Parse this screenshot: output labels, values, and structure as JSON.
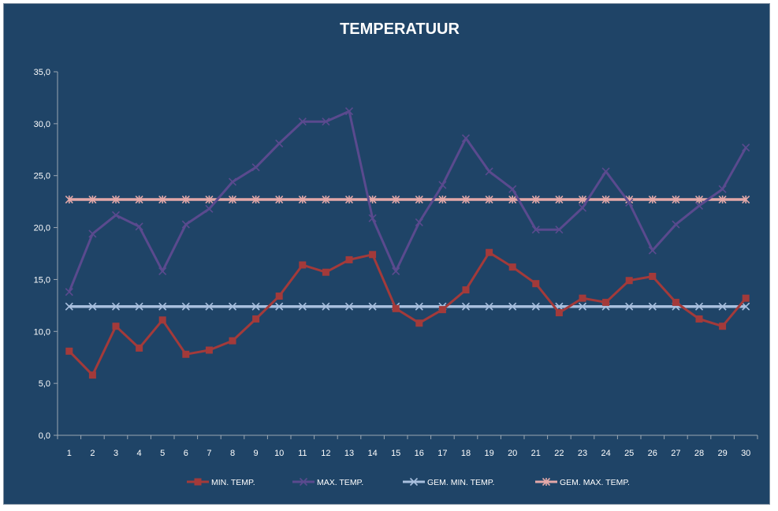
{
  "chart_data": {
    "type": "line",
    "title": "TEMPERATUUR",
    "xlabel": "",
    "ylabel": "",
    "ylim": [
      0,
      35
    ],
    "y_ticks": [
      "0,0",
      "5,0",
      "10,0",
      "15,0",
      "20,0",
      "25,0",
      "30,0",
      "35,0"
    ],
    "categories": [
      "1",
      "2",
      "3",
      "4",
      "5",
      "6",
      "7",
      "8",
      "9",
      "10",
      "11",
      "12",
      "13",
      "14",
      "15",
      "16",
      "17",
      "18",
      "19",
      "20",
      "21",
      "22",
      "23",
      "24",
      "25",
      "26",
      "27",
      "28",
      "29",
      "30"
    ],
    "grid": false,
    "legend_position": "bottom",
    "series": [
      {
        "name": "MIN. TEMP.",
        "color": "#a33a3a",
        "marker": "square",
        "values": [
          8.1,
          5.8,
          10.5,
          8.4,
          11.1,
          7.8,
          8.2,
          9.1,
          11.2,
          13.4,
          16.4,
          15.7,
          16.9,
          17.4,
          12.2,
          10.8,
          12.1,
          14.0,
          17.6,
          16.2,
          14.6,
          11.8,
          13.2,
          12.8,
          14.9,
          15.3,
          12.8,
          11.2,
          10.5,
          13.2
        ]
      },
      {
        "name": "MAX. TEMP.",
        "color": "#5a4a8e",
        "marker": "x",
        "values": [
          13.8,
          19.4,
          21.2,
          20.1,
          15.8,
          20.3,
          21.8,
          24.4,
          25.8,
          28.1,
          30.2,
          30.2,
          31.2,
          20.9,
          15.8,
          20.5,
          24.1,
          28.6,
          25.4,
          23.7,
          19.8,
          19.8,
          21.9,
          25.4,
          22.4,
          17.8,
          20.3,
          22.1,
          23.7,
          27.7
        ]
      },
      {
        "name": "GEM. MIN. TEMP.",
        "color": "#a8bfde",
        "marker": "x",
        "values": [
          12.4,
          12.4,
          12.4,
          12.4,
          12.4,
          12.4,
          12.4,
          12.4,
          12.4,
          12.4,
          12.4,
          12.4,
          12.4,
          12.4,
          12.4,
          12.4,
          12.4,
          12.4,
          12.4,
          12.4,
          12.4,
          12.4,
          12.4,
          12.4,
          12.4,
          12.4,
          12.4,
          12.4,
          12.4,
          12.4
        ]
      },
      {
        "name": "GEM. MAX. TEMP.",
        "color": "#e3a8a8",
        "marker": "asterisk",
        "values": [
          22.7,
          22.7,
          22.7,
          22.7,
          22.7,
          22.7,
          22.7,
          22.7,
          22.7,
          22.7,
          22.7,
          22.7,
          22.7,
          22.7,
          22.7,
          22.7,
          22.7,
          22.7,
          22.7,
          22.7,
          22.7,
          22.7,
          22.7,
          22.7,
          22.7,
          22.7,
          22.7,
          22.7,
          22.7,
          22.7
        ]
      }
    ]
  }
}
